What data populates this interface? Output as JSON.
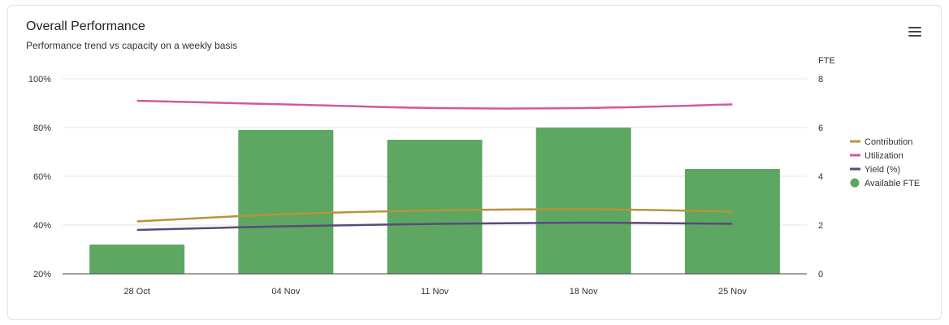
{
  "header": {
    "title": "Overall Performance",
    "subtitle": "Performance trend vs capacity on a weekly basis",
    "menu_icon": "hamburger-menu-icon"
  },
  "chart_data": {
    "type": "bar",
    "categories": [
      "28 Oct",
      "04 Nov",
      "11 Nov",
      "18 Nov",
      "25 Nov"
    ],
    "y_left": {
      "ticks": [
        "20%",
        "40%",
        "60%",
        "80%",
        "100%"
      ],
      "range": [
        20,
        100
      ]
    },
    "y_right": {
      "label": "FTE",
      "ticks": [
        "0",
        "2",
        "4",
        "6",
        "8"
      ],
      "range": [
        0,
        8
      ]
    },
    "series": [
      {
        "name": "Contribution",
        "type": "line",
        "axis": "left",
        "color": "#b5953a",
        "values": [
          41.5,
          44.5,
          46,
          46.5,
          45.5
        ]
      },
      {
        "name": "Utilization",
        "type": "line",
        "axis": "left",
        "color": "#d05a9c",
        "values": [
          91,
          89.5,
          88,
          88,
          89.5
        ]
      },
      {
        "name": "Yield (%)",
        "type": "line",
        "axis": "left",
        "color": "#5a4a78",
        "values": [
          38,
          39.5,
          40.5,
          41,
          40.5
        ]
      },
      {
        "name": "Available FTE",
        "type": "bar",
        "axis": "right",
        "color": "#5da762",
        "values": [
          1.2,
          5.9,
          5.5,
          6.0,
          4.3
        ]
      }
    ],
    "grid": true,
    "legend": "right"
  }
}
